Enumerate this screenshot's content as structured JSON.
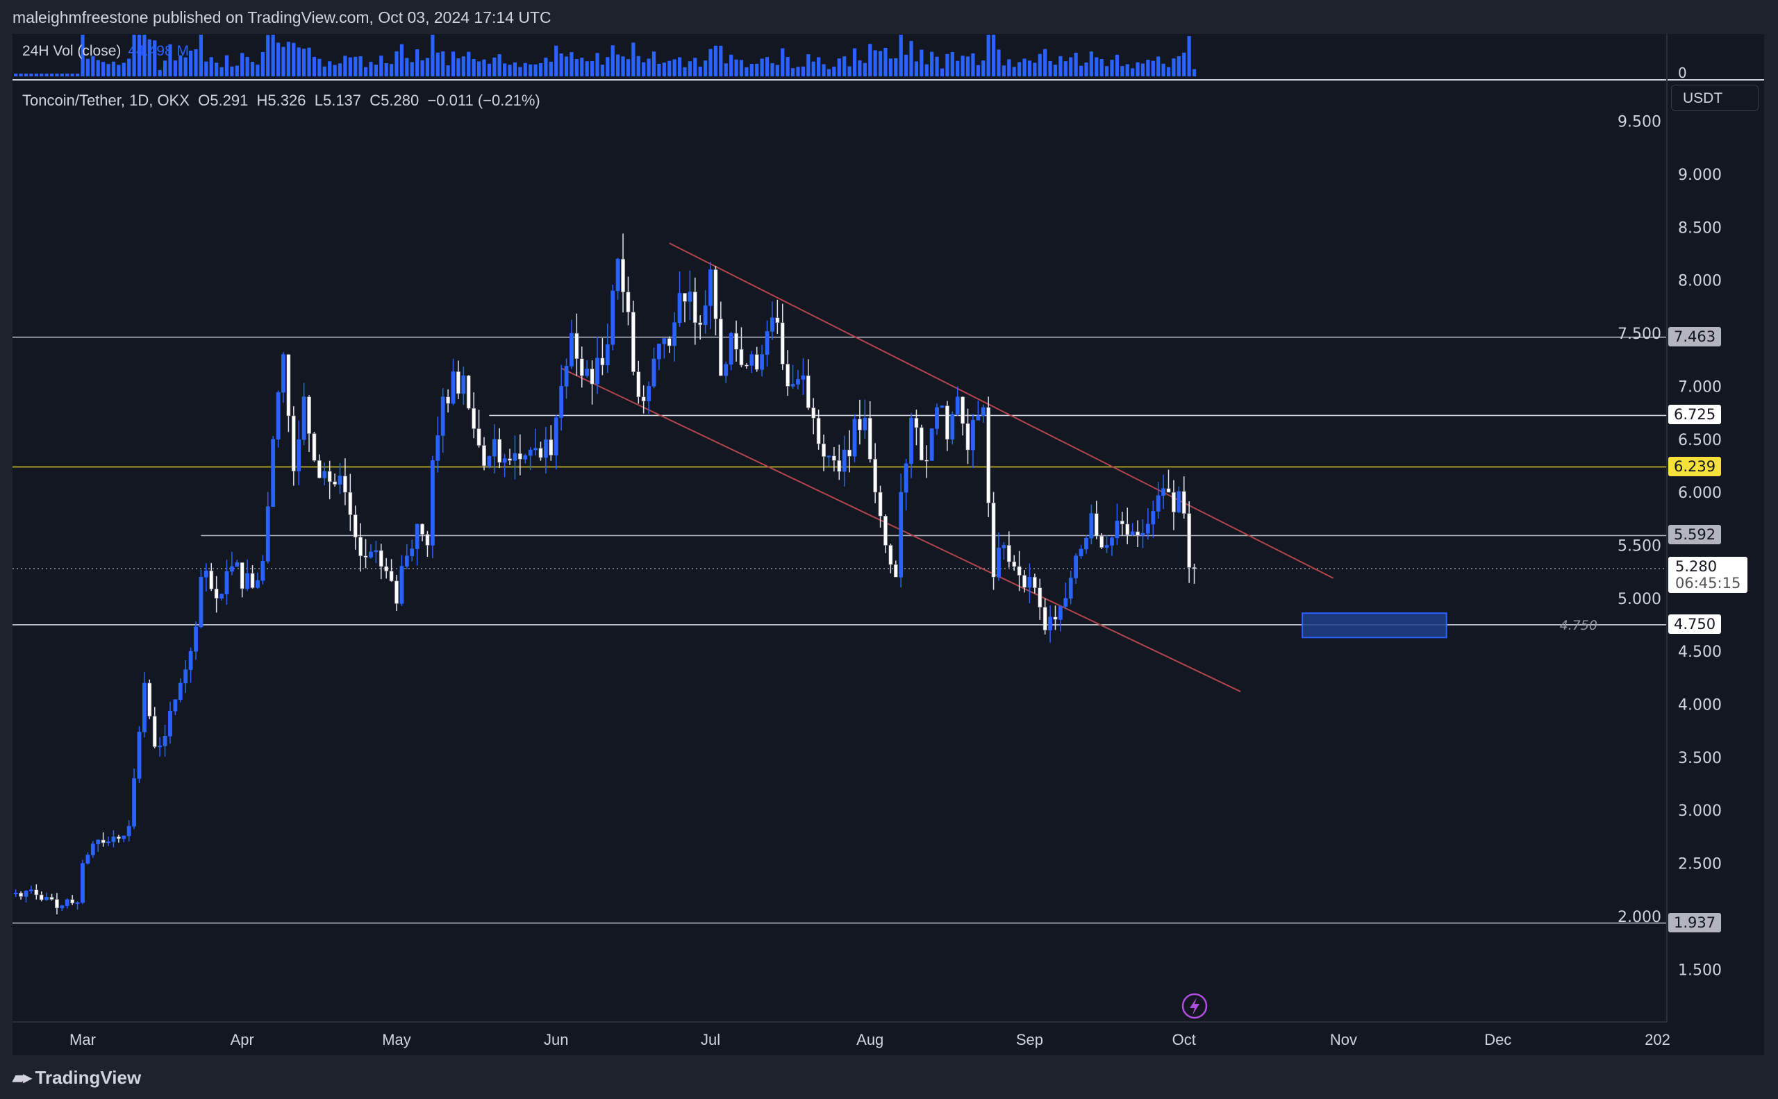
{
  "header": {
    "published": "maleighmfreestone published on TradingView.com, Oct 03, 2024 17:14 UTC"
  },
  "volume": {
    "label": "24H Vol (close)",
    "value": "44.498 M",
    "axis_zero": "0",
    "color": "#2962ff"
  },
  "legend": {
    "symbol": "Toncoin/Tether, 1D, OKX",
    "open": "O5.291",
    "high": "H5.326",
    "low": "L5.137",
    "close": "C5.280",
    "change": "−0.011 (−0.21%)"
  },
  "currency": "USDT",
  "footer": {
    "brand": "TradingView"
  },
  "chart_data": {
    "type": "candlestick",
    "x_ticks": [
      "Mar",
      "Apr",
      "May",
      "Jun",
      "Jul",
      "Aug",
      "Sep",
      "Oct",
      "Nov",
      "Dec",
      "202"
    ],
    "y_ticks": [
      "9.500",
      "9.000",
      "8.500",
      "8.000",
      "7.500",
      "7.000",
      "6.500",
      "6.000",
      "5.500",
      "5.000",
      "4.500",
      "4.000",
      "3.500",
      "3.000",
      "2.500",
      "2.000",
      "1.500"
    ],
    "ylim": [
      1.1,
      9.6
    ],
    "colors": {
      "up": "#2962ff",
      "down": "#e0e3eb",
      "trendline": "#b2454d",
      "highlight": "#f5e13a",
      "zone": "#1e3f8a"
    },
    "last_candle": {
      "date": "2024-10-03",
      "open": 5.291,
      "high": 5.326,
      "low": 5.137,
      "close": 5.28
    },
    "close_anchors": [
      [
        "2024-02-17",
        2.22
      ],
      [
        "2024-02-20",
        2.25
      ],
      [
        "2024-02-23",
        2.18
      ],
      [
        "2024-02-26",
        2.1
      ],
      [
        "2024-02-29",
        2.13
      ],
      [
        "2024-03-01",
        2.5
      ],
      [
        "2024-03-04",
        2.72
      ],
      [
        "2024-03-07",
        2.75
      ],
      [
        "2024-03-10",
        2.85
      ],
      [
        "2024-03-11",
        3.3
      ],
      [
        "2024-03-13",
        4.2
      ],
      [
        "2024-03-15",
        3.6
      ],
      [
        "2024-03-17",
        3.7
      ],
      [
        "2024-03-20",
        4.2
      ],
      [
        "2024-03-22",
        4.5
      ],
      [
        "2024-03-24",
        5.2
      ],
      [
        "2024-03-27",
        5.0
      ],
      [
        "2024-03-30",
        5.3
      ],
      [
        "2024-04-03",
        5.1
      ],
      [
        "2024-04-05",
        5.35
      ],
      [
        "2024-04-07",
        6.5
      ],
      [
        "2024-04-09",
        7.3
      ],
      [
        "2024-04-11",
        6.2
      ],
      [
        "2024-04-13",
        6.9
      ],
      [
        "2024-04-15",
        6.3
      ],
      [
        "2024-04-18",
        6.1
      ],
      [
        "2024-04-21",
        6.0
      ],
      [
        "2024-04-24",
        5.4
      ],
      [
        "2024-04-28",
        5.3
      ],
      [
        "2024-05-01",
        4.95
      ],
      [
        "2024-05-03",
        5.4
      ],
      [
        "2024-05-05",
        5.7
      ],
      [
        "2024-05-07",
        5.5
      ],
      [
        "2024-05-08",
        6.3
      ],
      [
        "2024-05-10",
        6.9
      ],
      [
        "2024-05-14",
        7.1
      ],
      [
        "2024-05-16",
        6.6
      ],
      [
        "2024-05-18",
        6.25
      ],
      [
        "2024-05-20",
        6.5
      ],
      [
        "2024-05-23",
        6.3
      ],
      [
        "2024-05-27",
        6.4
      ],
      [
        "2024-05-31",
        6.35
      ],
      [
        "2024-06-02",
        7.0
      ],
      [
        "2024-06-04",
        7.5
      ],
      [
        "2024-06-06",
        7.1
      ],
      [
        "2024-06-10",
        7.2
      ],
      [
        "2024-06-12",
        7.9
      ],
      [
        "2024-06-13",
        8.2
      ],
      [
        "2024-06-15",
        7.7
      ],
      [
        "2024-06-17",
        6.9
      ],
      [
        "2024-06-19",
        7.0
      ],
      [
        "2024-06-21",
        7.4
      ],
      [
        "2024-06-24",
        7.6
      ],
      [
        "2024-06-26",
        7.8
      ],
      [
        "2024-06-28",
        7.6
      ],
      [
        "2024-07-01",
        8.1
      ],
      [
        "2024-07-03",
        7.1
      ],
      [
        "2024-07-05",
        7.5
      ],
      [
        "2024-07-07",
        7.2
      ],
      [
        "2024-07-09",
        7.3
      ],
      [
        "2024-07-11",
        7.3
      ],
      [
        "2024-07-14",
        7.6
      ],
      [
        "2024-07-16",
        7.0
      ],
      [
        "2024-07-19",
        7.1
      ],
      [
        "2024-07-21",
        6.7
      ],
      [
        "2024-07-25",
        6.3
      ],
      [
        "2024-07-27",
        6.4
      ],
      [
        "2024-07-31",
        6.7
      ],
      [
        "2024-08-02",
        6.0
      ],
      [
        "2024-08-04",
        5.5
      ],
      [
        "2024-08-06",
        5.2
      ],
      [
        "2024-08-07",
        6.0
      ],
      [
        "2024-08-09",
        6.7
      ],
      [
        "2024-08-12",
        6.3
      ],
      [
        "2024-08-14",
        6.8
      ],
      [
        "2024-08-16",
        6.5
      ],
      [
        "2024-08-18",
        6.9
      ],
      [
        "2024-08-20",
        6.4
      ],
      [
        "2024-08-23",
        6.8
      ],
      [
        "2024-08-24",
        5.9
      ],
      [
        "2024-08-25",
        5.2
      ],
      [
        "2024-08-27",
        5.5
      ],
      [
        "2024-08-29",
        5.3
      ],
      [
        "2024-09-01",
        5.2
      ],
      [
        "2024-09-04",
        4.7
      ],
      [
        "2024-09-06",
        4.8
      ],
      [
        "2024-09-08",
        5.0
      ],
      [
        "2024-09-10",
        5.4
      ],
      [
        "2024-09-13",
        5.8
      ],
      [
        "2024-09-16",
        5.5
      ],
      [
        "2024-09-19",
        5.7
      ],
      [
        "2024-09-24",
        5.7
      ],
      [
        "2024-09-28",
        6.0
      ],
      [
        "2024-10-01",
        5.8
      ],
      [
        "2024-10-02",
        5.29
      ],
      [
        "2024-10-03",
        5.28
      ]
    ],
    "horizontal_levels": [
      {
        "price": 7.463,
        "label": "7.463",
        "start": "2024-02-15",
        "style": "grey"
      },
      {
        "price": 6.725,
        "label": "6.725",
        "start": "2024-05-19",
        "style": "white"
      },
      {
        "price": 6.239,
        "label": "6.239",
        "start": "2024-02-15",
        "style": "yellow"
      },
      {
        "price": 5.592,
        "label": "5.592",
        "start": "2024-03-24",
        "style": "grey"
      },
      {
        "price": 4.75,
        "label": "4.750",
        "start": "2024-02-15",
        "style": "white",
        "inline_label": "4.750"
      },
      {
        "price": 1.937,
        "label": "1.937",
        "start": "2024-02-15",
        "style": "grey"
      }
    ],
    "current_price": {
      "label": "5.280",
      "countdown": "06:45:15",
      "price": 5.28
    },
    "trendlines": [
      {
        "from": [
          "2024-06-23",
          8.35
        ],
        "to": [
          "2024-10-30",
          5.19
        ]
      },
      {
        "from": [
          "2024-06-02",
          7.17
        ],
        "to": [
          "2024-10-12",
          4.12
        ]
      }
    ],
    "zone": {
      "from": "2024-10-24",
      "to": "2024-11-21",
      "top": 4.86,
      "bottom": 4.63
    }
  }
}
